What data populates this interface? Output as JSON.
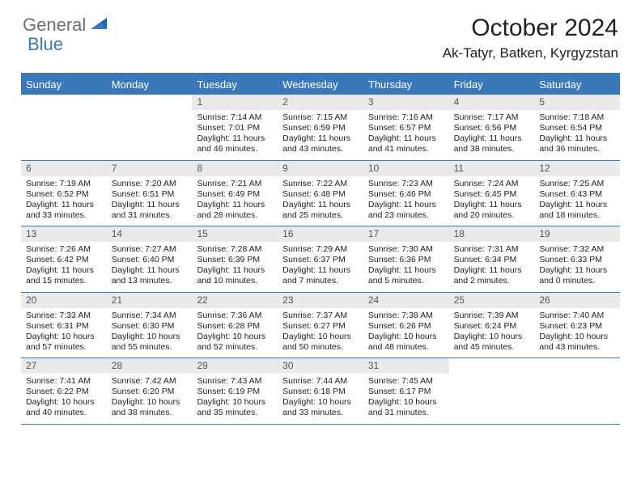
{
  "brand": {
    "general": "General",
    "blue": "Blue"
  },
  "title": "October 2024",
  "location": "Ak-Tatyr, Batken, Kyrgyzstan",
  "colors": {
    "accent": "#3a78b9",
    "dow_bg": "#3a78b9",
    "dow_text": "#ffffff",
    "daynum_bg": "#eaeaea",
    "text": "#222222",
    "logo_gray": "#6e6e6e"
  },
  "dow": [
    "Sunday",
    "Monday",
    "Tuesday",
    "Wednesday",
    "Thursday",
    "Friday",
    "Saturday"
  ],
  "weeks": [
    [
      null,
      null,
      {
        "n": "1",
        "sr": "Sunrise: 7:14 AM",
        "ss": "Sunset: 7:01 PM",
        "dl": "Daylight: 11 hours and 46 minutes."
      },
      {
        "n": "2",
        "sr": "Sunrise: 7:15 AM",
        "ss": "Sunset: 6:59 PM",
        "dl": "Daylight: 11 hours and 43 minutes."
      },
      {
        "n": "3",
        "sr": "Sunrise: 7:16 AM",
        "ss": "Sunset: 6:57 PM",
        "dl": "Daylight: 11 hours and 41 minutes."
      },
      {
        "n": "4",
        "sr": "Sunrise: 7:17 AM",
        "ss": "Sunset: 6:56 PM",
        "dl": "Daylight: 11 hours and 38 minutes."
      },
      {
        "n": "5",
        "sr": "Sunrise: 7:18 AM",
        "ss": "Sunset: 6:54 PM",
        "dl": "Daylight: 11 hours and 36 minutes."
      }
    ],
    [
      {
        "n": "6",
        "sr": "Sunrise: 7:19 AM",
        "ss": "Sunset: 6:52 PM",
        "dl": "Daylight: 11 hours and 33 minutes."
      },
      {
        "n": "7",
        "sr": "Sunrise: 7:20 AM",
        "ss": "Sunset: 6:51 PM",
        "dl": "Daylight: 11 hours and 31 minutes."
      },
      {
        "n": "8",
        "sr": "Sunrise: 7:21 AM",
        "ss": "Sunset: 6:49 PM",
        "dl": "Daylight: 11 hours and 28 minutes."
      },
      {
        "n": "9",
        "sr": "Sunrise: 7:22 AM",
        "ss": "Sunset: 6:48 PM",
        "dl": "Daylight: 11 hours and 25 minutes."
      },
      {
        "n": "10",
        "sr": "Sunrise: 7:23 AM",
        "ss": "Sunset: 6:46 PM",
        "dl": "Daylight: 11 hours and 23 minutes."
      },
      {
        "n": "11",
        "sr": "Sunrise: 7:24 AM",
        "ss": "Sunset: 6:45 PM",
        "dl": "Daylight: 11 hours and 20 minutes."
      },
      {
        "n": "12",
        "sr": "Sunrise: 7:25 AM",
        "ss": "Sunset: 6:43 PM",
        "dl": "Daylight: 11 hours and 18 minutes."
      }
    ],
    [
      {
        "n": "13",
        "sr": "Sunrise: 7:26 AM",
        "ss": "Sunset: 6:42 PM",
        "dl": "Daylight: 11 hours and 15 minutes."
      },
      {
        "n": "14",
        "sr": "Sunrise: 7:27 AM",
        "ss": "Sunset: 6:40 PM",
        "dl": "Daylight: 11 hours and 13 minutes."
      },
      {
        "n": "15",
        "sr": "Sunrise: 7:28 AM",
        "ss": "Sunset: 6:39 PM",
        "dl": "Daylight: 11 hours and 10 minutes."
      },
      {
        "n": "16",
        "sr": "Sunrise: 7:29 AM",
        "ss": "Sunset: 6:37 PM",
        "dl": "Daylight: 11 hours and 7 minutes."
      },
      {
        "n": "17",
        "sr": "Sunrise: 7:30 AM",
        "ss": "Sunset: 6:36 PM",
        "dl": "Daylight: 11 hours and 5 minutes."
      },
      {
        "n": "18",
        "sr": "Sunrise: 7:31 AM",
        "ss": "Sunset: 6:34 PM",
        "dl": "Daylight: 11 hours and 2 minutes."
      },
      {
        "n": "19",
        "sr": "Sunrise: 7:32 AM",
        "ss": "Sunset: 6:33 PM",
        "dl": "Daylight: 11 hours and 0 minutes."
      }
    ],
    [
      {
        "n": "20",
        "sr": "Sunrise: 7:33 AM",
        "ss": "Sunset: 6:31 PM",
        "dl": "Daylight: 10 hours and 57 minutes."
      },
      {
        "n": "21",
        "sr": "Sunrise: 7:34 AM",
        "ss": "Sunset: 6:30 PM",
        "dl": "Daylight: 10 hours and 55 minutes."
      },
      {
        "n": "22",
        "sr": "Sunrise: 7:36 AM",
        "ss": "Sunset: 6:28 PM",
        "dl": "Daylight: 10 hours and 52 minutes."
      },
      {
        "n": "23",
        "sr": "Sunrise: 7:37 AM",
        "ss": "Sunset: 6:27 PM",
        "dl": "Daylight: 10 hours and 50 minutes."
      },
      {
        "n": "24",
        "sr": "Sunrise: 7:38 AM",
        "ss": "Sunset: 6:26 PM",
        "dl": "Daylight: 10 hours and 48 minutes."
      },
      {
        "n": "25",
        "sr": "Sunrise: 7:39 AM",
        "ss": "Sunset: 6:24 PM",
        "dl": "Daylight: 10 hours and 45 minutes."
      },
      {
        "n": "26",
        "sr": "Sunrise: 7:40 AM",
        "ss": "Sunset: 6:23 PM",
        "dl": "Daylight: 10 hours and 43 minutes."
      }
    ],
    [
      {
        "n": "27",
        "sr": "Sunrise: 7:41 AM",
        "ss": "Sunset: 6:22 PM",
        "dl": "Daylight: 10 hours and 40 minutes."
      },
      {
        "n": "28",
        "sr": "Sunrise: 7:42 AM",
        "ss": "Sunset: 6:20 PM",
        "dl": "Daylight: 10 hours and 38 minutes."
      },
      {
        "n": "29",
        "sr": "Sunrise: 7:43 AM",
        "ss": "Sunset: 6:19 PM",
        "dl": "Daylight: 10 hours and 35 minutes."
      },
      {
        "n": "30",
        "sr": "Sunrise: 7:44 AM",
        "ss": "Sunset: 6:18 PM",
        "dl": "Daylight: 10 hours and 33 minutes."
      },
      {
        "n": "31",
        "sr": "Sunrise: 7:45 AM",
        "ss": "Sunset: 6:17 PM",
        "dl": "Daylight: 10 hours and 31 minutes."
      },
      null,
      null
    ]
  ]
}
